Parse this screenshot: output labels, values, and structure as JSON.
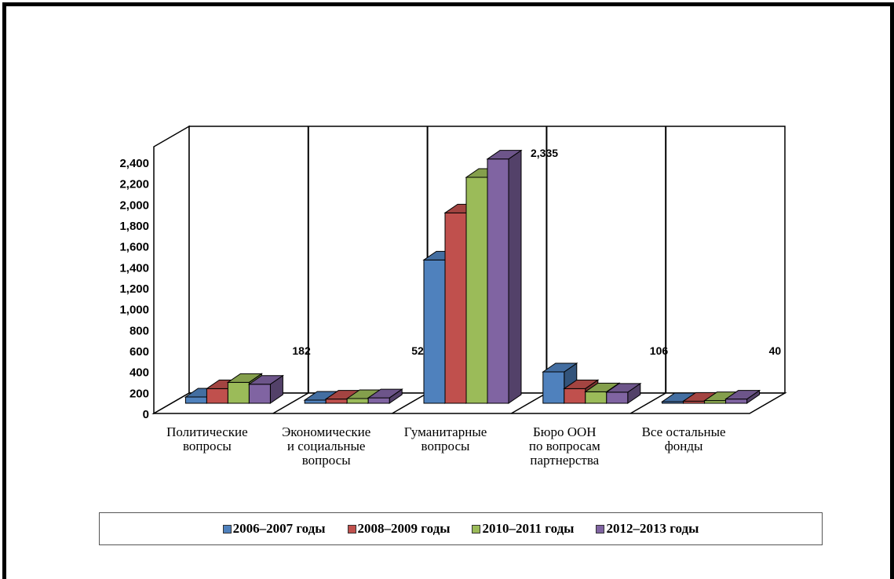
{
  "chart_data": {
    "type": "bar",
    "title": "",
    "xlabel": "",
    "ylabel": "",
    "ylim": [
      0,
      2400
    ],
    "yticks": [
      "0",
      "200",
      "400",
      "600",
      "800",
      "1,000",
      "1,200",
      "1,400",
      "1,600",
      "1,800",
      "2,000",
      "2,200",
      "2,400"
    ],
    "categories": [
      [
        "Политические",
        "вопросы"
      ],
      [
        "Экономические",
        "и социальные",
        "вопросы"
      ],
      [
        "Гуманитарные",
        "вопросы"
      ],
      [
        "Бюро ООН",
        "по вопросам",
        "партнерства"
      ],
      [
        "Все остальные",
        "фонды"
      ]
    ],
    "series": [
      {
        "name": "2006–2007 годы",
        "color": "#4f81bd",
        "values": [
          60,
          30,
          1370,
          300,
          15
        ]
      },
      {
        "name": "2008–2009 годы",
        "color": "#c0504d",
        "values": [
          140,
          40,
          1820,
          140,
          20
        ]
      },
      {
        "name": "2010–2011 годы",
        "color": "#9bbb59",
        "values": [
          200,
          45,
          2160,
          110,
          25
        ]
      },
      {
        "name": "2012–2013 годы",
        "color": "#8064a2",
        "values": [
          182,
          52,
          2335,
          106,
          40
        ]
      }
    ],
    "data_labels": [
      "182",
      "52",
      "2,335",
      "106",
      "40"
    ],
    "grid": false,
    "legend_position": "bottom",
    "view": "3d"
  }
}
